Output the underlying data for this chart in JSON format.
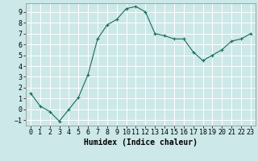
{
  "x": [
    0,
    1,
    2,
    3,
    4,
    5,
    6,
    7,
    8,
    9,
    10,
    11,
    12,
    13,
    14,
    15,
    16,
    17,
    18,
    19,
    20,
    21,
    22,
    23
  ],
  "y": [
    1.5,
    0.3,
    -0.2,
    -1.1,
    0.0,
    1.1,
    3.2,
    6.5,
    7.8,
    8.3,
    9.3,
    9.5,
    9.0,
    7.0,
    6.8,
    6.5,
    6.5,
    5.3,
    4.5,
    5.0,
    5.5,
    6.3,
    6.5,
    7.0
  ],
  "line_color": "#1a6b5a",
  "marker": "+",
  "marker_color": "#1a6b5a",
  "bg_color": "#cce8e8",
  "grid_color": "#ffffff",
  "xlabel": "Humidex (Indice chaleur)",
  "xlim": [
    -0.5,
    23.5
  ],
  "ylim": [
    -1.5,
    9.8
  ],
  "yticks": [
    -1,
    0,
    1,
    2,
    3,
    4,
    5,
    6,
    7,
    8,
    9
  ],
  "xticks": [
    0,
    1,
    2,
    3,
    4,
    5,
    6,
    7,
    8,
    9,
    10,
    11,
    12,
    13,
    14,
    15,
    16,
    17,
    18,
    19,
    20,
    21,
    22,
    23
  ],
  "tick_label_fontsize": 6,
  "xlabel_fontsize": 7
}
